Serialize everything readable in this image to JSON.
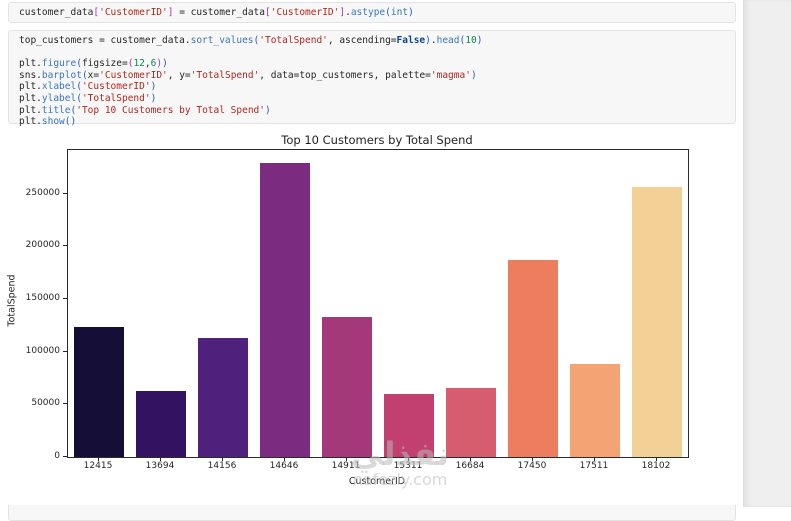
{
  "notebook": {
    "cells": [
      {
        "name": "code-cell-1",
        "lines": [
          "customer_data['CustomerID'] = customer_data['CustomerID'].astype(int)"
        ]
      },
      {
        "name": "code-cell-2",
        "lines": [
          "top_customers = customer_data.sort_values('TotalSpend', ascending=False).head(10)",
          "",
          "plt.figure(figsize=(12,6))",
          "sns.barplot(x='CustomerID', y='TotalSpend', data=top_customers, palette='magma')",
          "plt.xlabel('CustomerID')",
          "plt.ylabel('TotalSpend')",
          "plt.title('Top 10 Customers by Total Spend')",
          "plt.show()"
        ]
      },
      {
        "name": "code-cell-3-partial",
        "lines": [
          ""
        ]
      }
    ]
  },
  "chart_data": {
    "type": "bar",
    "title": "Top 10 Customers by Total Spend",
    "xlabel": "CustomerID",
    "ylabel": "TotalSpend",
    "categories": [
      "12415",
      "13694",
      "14156",
      "14646",
      "14911",
      "15311",
      "16684",
      "17450",
      "17511",
      "18102"
    ],
    "values": [
      123725,
      62653,
      113384,
      279489,
      132573,
      59419,
      65892,
      187482,
      88125,
      256438
    ],
    "bar_colors": [
      "#150e37",
      "#331262",
      "#50217c",
      "#7b2c81",
      "#a43879",
      "#c2406f",
      "#d55d6d",
      "#ec7d5f",
      "#f4a474",
      "#f2d096"
    ],
    "yticks": [
      0,
      50000,
      100000,
      150000,
      200000,
      250000
    ],
    "ylim": [
      0,
      291500
    ],
    "grid": false,
    "legend": null,
    "palette": "magma"
  },
  "watermark": {
    "arabic": "نفذلي",
    "domain": "nafezly.com"
  },
  "theme": {
    "cell_background": "#f7f7f7",
    "cell_border": "#e3e3e3",
    "page_gutter": "#efefef",
    "string_color": "#b3261e",
    "method_color": "#3a76c0",
    "number_color": "#098658"
  }
}
